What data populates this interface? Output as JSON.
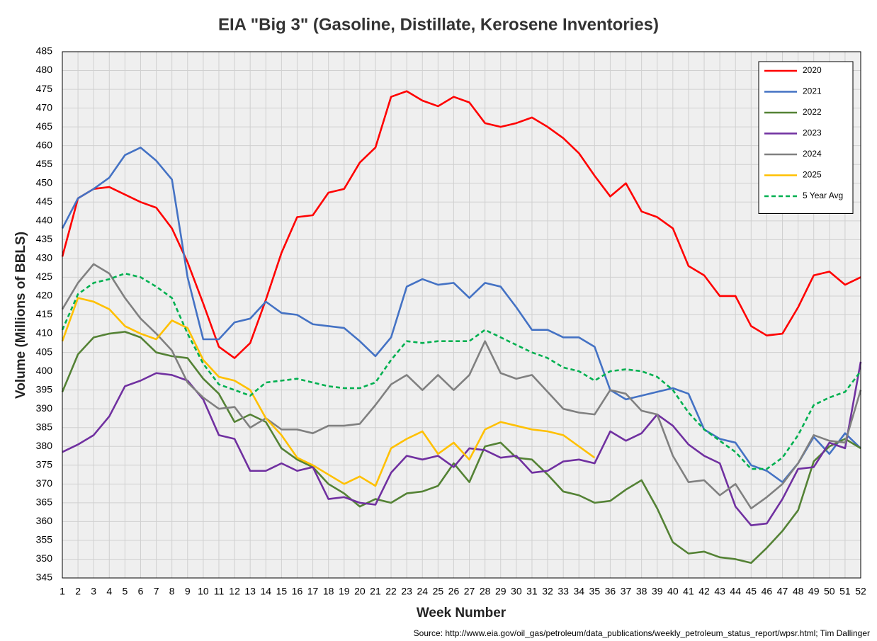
{
  "chart_data": {
    "type": "line",
    "title": "EIA \"Big 3\" (Gasoline, Distillate, Kerosene Inventories)",
    "xlabel": "Week Number",
    "ylabel": "Volume (Millions of BBLS)",
    "source": "Source: http://www.eia.gov/oil_gas/petroleum/data_publications/weekly_petroleum_status_report/wpsr.html; Tim Dallinger",
    "x": [
      1,
      2,
      3,
      4,
      5,
      6,
      7,
      8,
      9,
      10,
      11,
      12,
      13,
      14,
      15,
      16,
      17,
      18,
      19,
      20,
      21,
      22,
      23,
      24,
      25,
      26,
      27,
      28,
      29,
      30,
      31,
      32,
      33,
      34,
      35,
      36,
      37,
      38,
      39,
      40,
      41,
      42,
      43,
      44,
      45,
      46,
      47,
      48,
      49,
      50,
      51,
      52
    ],
    "xlim": [
      1,
      52
    ],
    "xticks": [
      1,
      2,
      3,
      4,
      5,
      6,
      7,
      8,
      9,
      10,
      11,
      12,
      13,
      14,
      15,
      16,
      17,
      18,
      19,
      20,
      21,
      22,
      23,
      24,
      25,
      26,
      27,
      28,
      29,
      30,
      31,
      32,
      33,
      34,
      35,
      36,
      37,
      38,
      39,
      40,
      41,
      42,
      43,
      44,
      45,
      46,
      47,
      48,
      49,
      50,
      51,
      52
    ],
    "ylim": [
      345,
      485
    ],
    "yticks": [
      345,
      350,
      355,
      360,
      365,
      370,
      375,
      380,
      385,
      390,
      395,
      400,
      405,
      410,
      415,
      420,
      425,
      430,
      435,
      440,
      445,
      450,
      455,
      460,
      465,
      470,
      475,
      480,
      485
    ],
    "grid": true,
    "legend": "upper right",
    "series": [
      {
        "name": "2020",
        "color": "#ff0000",
        "line_style": "solid",
        "values": [
          430.5,
          446,
          448.5,
          449,
          447,
          445,
          443.5,
          438,
          429,
          418,
          406.5,
          403.5,
          407.5,
          419,
          431.5,
          441,
          441.5,
          447.5,
          448.5,
          455.5,
          459.5,
          473,
          474.5,
          472,
          470.5,
          473,
          471.5,
          466,
          465,
          466,
          467.5,
          465,
          462,
          458,
          452,
          446.5,
          450,
          442.5,
          441,
          438,
          428,
          425.5,
          420,
          420,
          412,
          409.5,
          410,
          417,
          425.5,
          426.5,
          423,
          425
        ]
      },
      {
        "name": "2021",
        "color": "#4472c4",
        "line_style": "solid",
        "values": [
          438,
          446,
          448.5,
          451.5,
          457.5,
          459.5,
          456,
          451,
          425,
          408.5,
          408.5,
          413,
          414,
          418.5,
          415.5,
          415,
          412.5,
          412,
          411.5,
          408,
          404,
          409,
          422.5,
          424.5,
          423,
          423.5,
          419.5,
          423.5,
          422.5,
          417,
          411,
          411,
          409,
          409,
          406.5,
          395,
          392.5,
          393.5,
          394.5,
          395.5,
          394,
          384.5,
          382,
          381,
          375,
          373.5,
          370.5,
          375.5,
          382.5,
          378,
          383.5,
          379.5
        ]
      },
      {
        "name": "2022",
        "color": "#548235",
        "line_style": "solid",
        "values": [
          394.5,
          404.5,
          409,
          410,
          410.5,
          409,
          405,
          404,
          403.5,
          398,
          394,
          386.5,
          388.5,
          386.5,
          379.5,
          376.5,
          374.5,
          370,
          367.5,
          364,
          366,
          365,
          367.5,
          368,
          369.5,
          375.5,
          370.5,
          380,
          381,
          377,
          376.5,
          372.5,
          368,
          367,
          365,
          365.5,
          368.5,
          371,
          363.5,
          354.5,
          351.5,
          352,
          350.5,
          350,
          349,
          353,
          357.5,
          363,
          376,
          380,
          382,
          379.5
        ]
      },
      {
        "name": "2023",
        "color": "#7030a0",
        "line_style": "solid",
        "values": [
          378.5,
          380.5,
          383,
          388,
          396,
          397.5,
          399.5,
          399,
          397.5,
          392.5,
          383,
          382,
          373.5,
          373.5,
          375.5,
          373.5,
          374.5,
          366,
          366.5,
          365,
          364.5,
          373,
          377.5,
          376.5,
          377.5,
          374.5,
          379.5,
          379,
          377,
          377.5,
          373,
          373.5,
          376,
          376.5,
          375.5,
          384,
          381.5,
          383.5,
          388.5,
          385.5,
          380.5,
          377.5,
          375.5,
          364,
          359,
          359.5,
          366,
          374,
          374.5,
          381,
          379.5,
          402.5
        ]
      },
      {
        "name": "2024",
        "color": "#808080",
        "line_style": "solid",
        "values": [
          416.5,
          423.5,
          428.5,
          426,
          419.5,
          414,
          410,
          405.5,
          397,
          393,
          390,
          390.5,
          385,
          387.5,
          384.5,
          384.5,
          383.5,
          385.5,
          385.5,
          386,
          391,
          396.5,
          399,
          395,
          399,
          395,
          399,
          408,
          399.5,
          398,
          399,
          394.5,
          390,
          389,
          388.5,
          395,
          394,
          389.5,
          388.5,
          377.5,
          370.5,
          371,
          367,
          370,
          363.5,
          366.5,
          370,
          375.5,
          383,
          381.5,
          381,
          395
        ]
      },
      {
        "name": "2025",
        "color": "#ffc000",
        "line_style": "solid",
        "values": [
          408,
          419.5,
          418.5,
          416.5,
          412,
          410,
          408.5,
          413.5,
          411.5,
          403,
          398.5,
          397.5,
          395,
          387.5,
          383,
          377,
          375,
          372.5,
          370,
          372,
          369.5,
          379.5,
          382,
          384,
          378,
          381,
          376.5,
          384.5,
          386.5,
          385.5,
          384.5,
          384,
          383,
          380,
          377,
          null,
          null,
          null,
          null,
          null,
          null,
          null,
          null,
          null,
          null,
          null,
          null,
          null,
          null,
          null,
          null,
          null
        ]
      },
      {
        "name": "5 Year Avg",
        "color": "#00b050",
        "line_style": "dashed",
        "values": [
          411,
          420.5,
          423.5,
          424.5,
          426,
          425,
          422.5,
          419.5,
          410,
          402,
          396.5,
          395,
          393.5,
          397,
          397.5,
          398,
          397,
          396,
          395.5,
          395.5,
          397,
          403,
          408,
          407.5,
          408,
          408,
          408,
          411,
          409,
          407,
          405,
          403.5,
          401,
          400,
          397.5,
          400,
          400.5,
          400,
          398.5,
          395,
          389,
          384.5,
          381.5,
          378.5,
          374,
          374,
          377,
          383,
          391,
          393,
          394.5,
          400
        ]
      }
    ]
  }
}
